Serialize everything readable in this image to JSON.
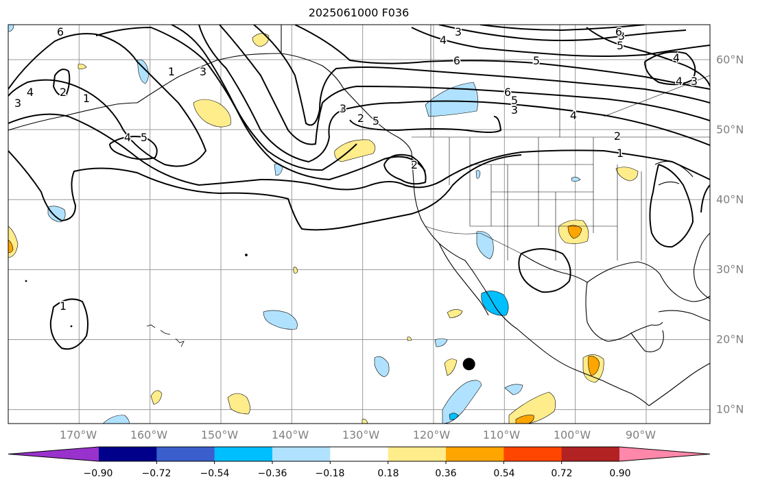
{
  "title": "2025061000 F036",
  "map": {
    "lon_range": [
      -180,
      -81
    ],
    "lat_range": [
      8,
      65
    ],
    "gridlines": true,
    "lon_labels": [
      "170°W",
      "160°W",
      "150°W",
      "140°W",
      "130°W",
      "120°W",
      "110°W",
      "100°W",
      "90°W"
    ],
    "lat_labels": [
      "60°N",
      "50°N",
      "40°N",
      "30°N",
      "20°N",
      "10°N"
    ],
    "contour_color": "#000000",
    "contour_labels": [
      "6",
      "4",
      "3",
      "2",
      "1",
      "1",
      "3",
      "4",
      "5",
      "3",
      "2",
      "5",
      "2",
      "3",
      "4",
      "6",
      "5",
      "6",
      "5",
      "3",
      "4",
      "2",
      "1",
      "1",
      "3",
      "4",
      "6",
      "5",
      "4",
      "3"
    ],
    "marker": {
      "lon": -115,
      "lat": 16.5,
      "color": "#000000"
    }
  },
  "colorbar": {
    "colors": [
      "#9932cc",
      "#00008b",
      "#3a5fcd",
      "#00bfff",
      "#b0e2ff",
      "#ffffff",
      "#ffec8b",
      "#ffa500",
      "#ff4500",
      "#b22222",
      "#ff88aa"
    ],
    "ticks": [
      "−0.90",
      "−0.72",
      "−0.54",
      "−0.36",
      "−0.18",
      "0.18",
      "0.36",
      "0.54",
      "0.72",
      "0.90"
    ]
  }
}
